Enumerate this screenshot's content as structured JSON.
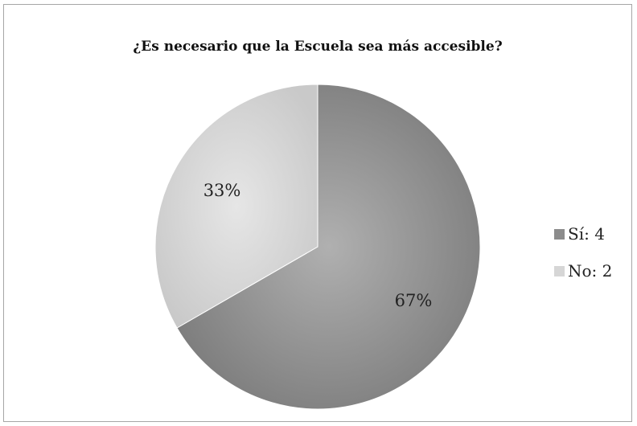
{
  "chart_data": {
    "type": "pie",
    "title": "¿Es necesario que la Escuela sea más accesible?",
    "categories": [
      "Sí: 4",
      "No: 2"
    ],
    "values": [
      4,
      2
    ],
    "percent_labels": [
      "67%",
      "33%"
    ],
    "colors": [
      "#8c8c8c",
      "#d6d6d6"
    ],
    "legend_position": "right"
  }
}
